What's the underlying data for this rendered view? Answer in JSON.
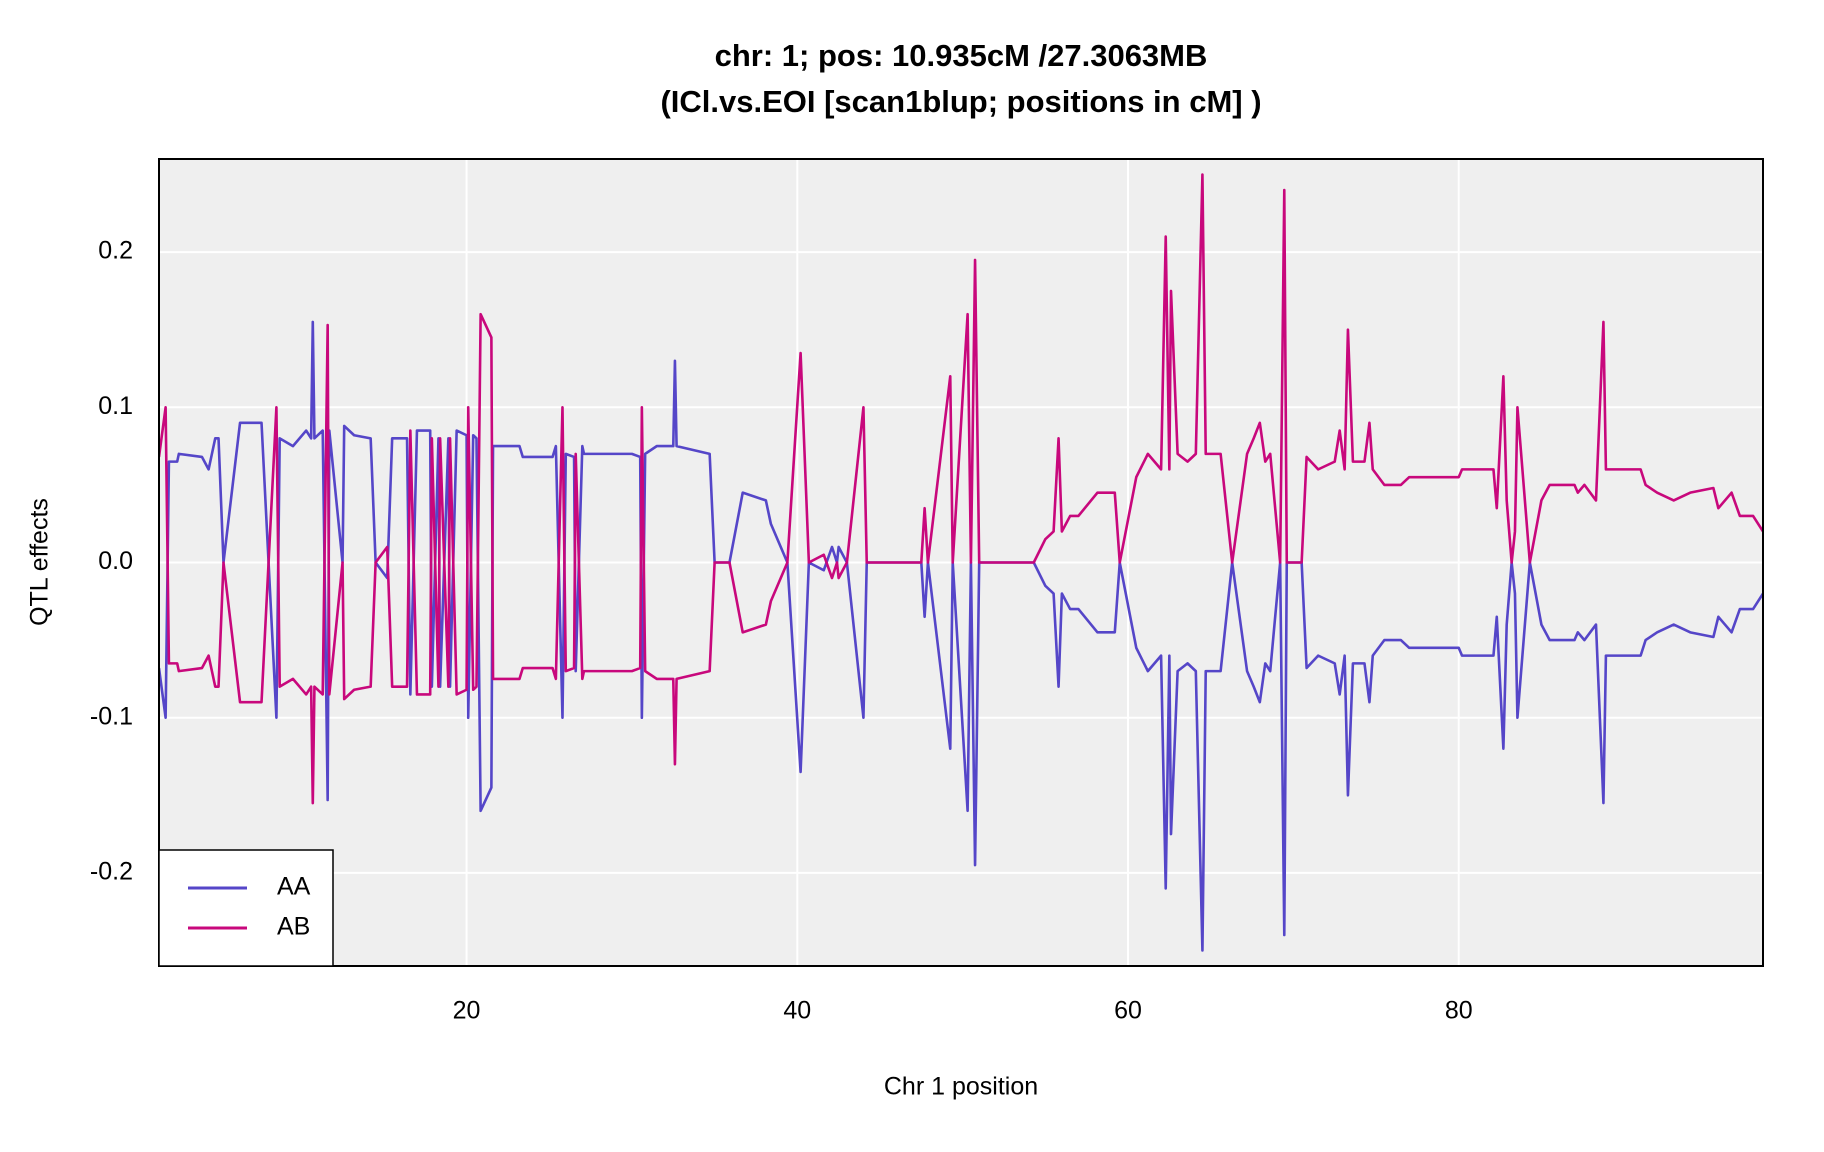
{
  "chart_data": {
    "type": "line",
    "title": "chr: 1; pos: 10.935cM /27.3063MB",
    "subtitle": "(ICl.vs.EOI [scan1blup; positions in cM] )",
    "x_label": "Chr 1 position",
    "y_label": "QTL effects",
    "x": [
      1.4,
      1.8,
      2.0,
      2.5,
      2.6,
      4.0,
      4.4,
      4.8,
      5.0,
      5.3,
      6.3,
      7.6,
      8.5,
      8.7,
      9.5,
      10.3,
      10.6,
      10.7,
      10.8,
      11.3,
      11.6,
      11.7,
      12.5,
      12.6,
      13.2,
      14.2,
      14.5,
      15.2,
      15.5,
      16.4,
      16.6,
      17.0,
      17.8,
      17.9,
      18.3,
      18.4,
      18.9,
      19.0,
      19.4,
      20.0,
      20.1,
      20.4,
      20.6,
      20.85,
      21.5,
      21.6,
      23.2,
      23.4,
      25.2,
      25.4,
      25.8,
      26.0,
      26.5,
      26.6,
      27.0,
      27.1,
      30.0,
      30.5,
      30.6,
      30.8,
      31.5,
      32.5,
      32.6,
      32.7,
      34.7,
      35.0,
      35.9,
      36.7,
      38.1,
      38.4,
      39.0,
      39.4,
      40.2,
      40.7,
      41.6,
      42.1,
      42.4,
      42.5,
      43.0,
      44.0,
      44.2,
      47.5,
      47.7,
      47.9,
      49.25,
      49.4,
      50.3,
      50.5,
      50.75,
      51.0,
      54.3,
      55.0,
      55.5,
      55.8,
      56.0,
      56.5,
      57.0,
      58.15,
      59.2,
      59.5,
      60.5,
      61.2,
      62.0,
      62.28,
      62.5,
      62.6,
      63.0,
      63.6,
      64.1,
      64.5,
      64.7,
      65.6,
      66.3,
      67.2,
      67.6,
      67.97,
      68.3,
      68.6,
      69.2,
      69.45,
      69.6,
      70.5,
      70.8,
      71.5,
      72.5,
      72.8,
      73.1,
      73.3,
      73.6,
      74.3,
      74.6,
      74.8,
      75.5,
      76.5,
      77.0,
      80.0,
      80.2,
      82.1,
      82.3,
      82.7,
      82.9,
      83.2,
      83.4,
      83.55,
      84.3,
      85.0,
      85.5,
      87.0,
      87.2,
      87.6,
      88.3,
      88.75,
      88.9,
      91.0,
      91.3,
      92.0,
      93.0,
      94.0,
      95.4,
      95.7,
      96.5,
      97.0,
      97.8,
      98.4
    ],
    "series": [
      {
        "name": "AA",
        "color": "#5546c8",
        "values": [
          -0.068,
          -0.1,
          0.065,
          0.065,
          0.07,
          0.068,
          0.06,
          0.08,
          0.08,
          0,
          0.09,
          0.09,
          -0.1,
          0.08,
          0.075,
          0.085,
          0.08,
          0.155,
          0.08,
          0.085,
          -0.153,
          0.085,
          0,
          0.088,
          0.082,
          0.08,
          0,
          -0.01,
          0.08,
          0.08,
          -0.085,
          0.085,
          0.085,
          -0.08,
          0.08,
          -0.08,
          0.08,
          -0.08,
          0.085,
          0.082,
          -0.1,
          0.082,
          0.08,
          -0.16,
          -0.145,
          0.075,
          0.075,
          0.068,
          0.068,
          0.075,
          -0.1,
          0.07,
          0.068,
          -0.07,
          0.075,
          0.07,
          0.07,
          0.068,
          -0.1,
          0.07,
          0.075,
          0.075,
          0.13,
          0.075,
          0.07,
          0,
          0,
          0.045,
          0.04,
          0.025,
          0.01,
          0,
          -0.135,
          0,
          -0.005,
          0.01,
          0,
          0.01,
          0,
          -0.1,
          0,
          0,
          -0.035,
          0,
          -0.12,
          0,
          -0.16,
          0,
          -0.195,
          0,
          0,
          -0.015,
          -0.02,
          -0.08,
          -0.02,
          -0.03,
          -0.03,
          -0.045,
          -0.045,
          0,
          -0.055,
          -0.07,
          -0.06,
          -0.21,
          -0.06,
          -0.175,
          -0.07,
          -0.065,
          -0.07,
          -0.25,
          -0.07,
          -0.07,
          0,
          -0.07,
          -0.08,
          -0.09,
          -0.065,
          -0.07,
          0,
          -0.24,
          0,
          0,
          -0.068,
          -0.06,
          -0.065,
          -0.085,
          -0.06,
          -0.15,
          -0.065,
          -0.065,
          -0.09,
          -0.06,
          -0.05,
          -0.05,
          -0.055,
          -0.055,
          -0.06,
          -0.06,
          -0.035,
          -0.12,
          -0.04,
          0,
          -0.02,
          -0.1,
          0,
          -0.04,
          -0.05,
          -0.05,
          -0.045,
          -0.05,
          -0.04,
          -0.155,
          -0.06,
          -0.06,
          -0.05,
          -0.045,
          -0.04,
          -0.045,
          -0.048,
          -0.035,
          -0.045,
          -0.03,
          -0.03,
          -0.02
        ]
      },
      {
        "name": "AB",
        "color": "#c8087c",
        "values": [
          0.068,
          0.1,
          -0.065,
          -0.065,
          -0.07,
          -0.068,
          -0.06,
          -0.08,
          -0.08,
          0,
          -0.09,
          -0.09,
          0.1,
          -0.08,
          -0.075,
          -0.085,
          -0.08,
          -0.155,
          -0.08,
          -0.085,
          0.153,
          -0.085,
          0,
          -0.088,
          -0.082,
          -0.08,
          0,
          0.01,
          -0.08,
          -0.08,
          0.085,
          -0.085,
          -0.085,
          0.08,
          -0.08,
          0.08,
          -0.08,
          0.08,
          -0.085,
          -0.082,
          0.1,
          -0.082,
          -0.08,
          0.16,
          0.145,
          -0.075,
          -0.075,
          -0.068,
          -0.068,
          -0.075,
          0.1,
          -0.07,
          -0.068,
          0.07,
          -0.075,
          -0.07,
          -0.07,
          -0.068,
          0.1,
          -0.07,
          -0.075,
          -0.075,
          -0.13,
          -0.075,
          -0.07,
          0,
          0,
          -0.045,
          -0.04,
          -0.025,
          -0.01,
          0,
          0.135,
          0,
          0.005,
          -0.01,
          0,
          -0.01,
          0,
          0.1,
          0,
          0,
          0.035,
          0,
          0.12,
          0,
          0.16,
          0,
          0.195,
          0,
          0,
          0.015,
          0.02,
          0.08,
          0.02,
          0.03,
          0.03,
          0.045,
          0.045,
          0,
          0.055,
          0.07,
          0.06,
          0.21,
          0.06,
          0.175,
          0.07,
          0.065,
          0.07,
          0.25,
          0.07,
          0.07,
          0,
          0.07,
          0.08,
          0.09,
          0.065,
          0.07,
          0,
          0.24,
          0,
          0,
          0.068,
          0.06,
          0.065,
          0.085,
          0.06,
          0.15,
          0.065,
          0.065,
          0.09,
          0.06,
          0.05,
          0.05,
          0.055,
          0.055,
          0.06,
          0.06,
          0.035,
          0.12,
          0.04,
          0,
          0.02,
          0.1,
          0,
          0.04,
          0.05,
          0.05,
          0.045,
          0.05,
          0.04,
          0.155,
          0.06,
          0.06,
          0.05,
          0.045,
          0.04,
          0.045,
          0.048,
          0.035,
          0.045,
          0.03,
          0.03,
          0.02
        ]
      }
    ],
    "xlim": [
      1.4,
      98.4
    ],
    "ylim": [
      -0.26,
      0.26
    ],
    "xticks": [
      20,
      40,
      60,
      80
    ],
    "yticks": [
      -0.2,
      -0.1,
      {
        "value": 0,
        "label": "0.0"
      },
      0.1,
      0.2
    ],
    "grid": true,
    "legend": "bottom left"
  }
}
